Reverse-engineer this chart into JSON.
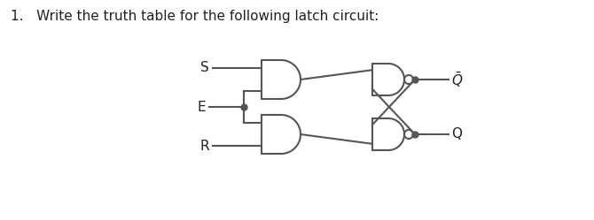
{
  "title_text": "1.   Write the truth table for the following latch circuit:",
  "title_fontsize": 11,
  "bg_color": "#ffffff",
  "line_color": "#555555",
  "line_width": 1.5,
  "label_S": "S",
  "label_E": "E",
  "label_R": "R",
  "label_Qbar": "$\\bar{Q}$",
  "label_Q": "Q",
  "label_fontsize": 11
}
